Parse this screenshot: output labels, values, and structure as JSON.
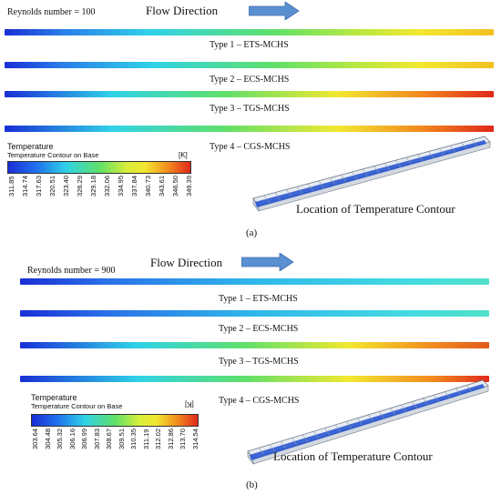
{
  "panels": [
    {
      "reynolds": "Reynolds number = 100",
      "flow_direction": "Flow Direction",
      "types": [
        "Type 1 – ETS-MCHS",
        "Type 2 – ECS-MCHS",
        "Type 3 – TGS-MCHS",
        "Type 4 – CGS-MCHS"
      ],
      "legend_title": "Temperature",
      "legend_subtitle": "Temperature Contour on Base",
      "legend_unit": "[K]",
      "ticks": [
        "311.85",
        "314.74",
        "317.63",
        "320.51",
        "323.40",
        "326.29",
        "329.18",
        "332.06",
        "334.95",
        "337.84",
        "340.73",
        "343.61",
        "346.50",
        "349.39"
      ],
      "location_label": "Location of Temperature Contour",
      "caption": "(a)"
    },
    {
      "reynolds": "Reynolds number = 900",
      "flow_direction": "Flow Direction",
      "types": [
        "Type 1 – ETS-MCHS",
        "Type 2 – ECS-MCHS",
        "Type 3 – TGS-MCHS",
        "Type 4 – CGS-MCHS"
      ],
      "legend_title": "Temperature",
      "legend_subtitle": "Temperature Contour on Base",
      "legend_unit": "[K]",
      "ticks": [
        "303.64",
        "304.48",
        "305.32",
        "306.16",
        "306.99",
        "307.83",
        "308.67",
        "309.51",
        "310.35",
        "311.19",
        "312.02",
        "312.86",
        "313.70",
        "314.54"
      ],
      "location_label": "Location of Temperature Contour",
      "caption": "(b)"
    }
  ],
  "colors": {
    "blue": "#1a2fd6",
    "cyan": "#2fd2e8",
    "green": "#5fe06a",
    "yellow": "#f2e830",
    "orange": "#f28a1e",
    "red": "#e0281a",
    "arrow": "#5a8fd0"
  }
}
